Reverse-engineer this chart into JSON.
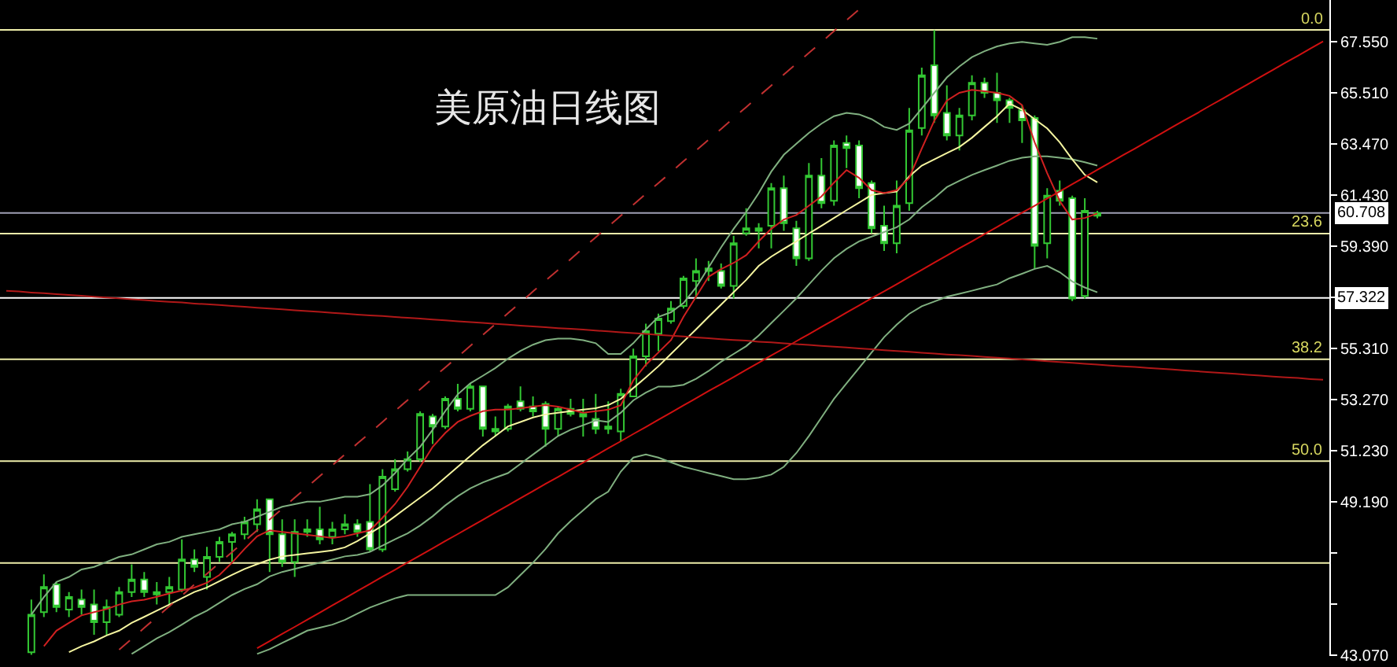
{
  "chart_data": {
    "type": "candlestick",
    "title": "美原油日线图",
    "color": "#33c833",
    "tick_labels": "y",
    "categories": [
      null,
      null,
      null,
      null,
      null,
      null,
      null,
      null,
      null,
      null,
      null,
      null,
      null,
      null,
      null,
      null,
      null,
      null,
      null,
      null,
      null,
      null,
      null,
      null,
      null,
      null,
      null,
      null,
      null,
      null,
      null,
      null,
      null,
      null,
      null,
      null,
      null,
      null,
      null,
      null,
      null,
      null,
      null,
      null,
      null,
      null,
      null,
      null,
      null,
      null,
      null,
      null,
      null,
      null,
      null,
      null,
      null,
      null,
      null,
      null,
      null,
      null,
      null,
      null,
      null,
      null,
      null,
      null,
      null,
      null,
      null,
      null,
      null,
      null,
      null,
      null,
      null,
      null,
      null,
      null,
      null,
      null,
      null,
      null,
      null,
      null,
      null,
      null,
      null,
      null,
      null,
      null,
      null,
      null,
      null,
      null,
      null,
      null,
      null,
      null,
      null,
      null,
      null,
      null,
      null,
      null
    ],
    "ohlc": [
      null,
      null,
      [
        43.2,
        45.3,
        43.1,
        44.7
      ],
      [
        44.8,
        46.3,
        44.6,
        45.8
      ],
      [
        45.9,
        46.0,
        44.8,
        45.0
      ],
      [
        44.9,
        45.6,
        44.6,
        45.4
      ],
      [
        45.3,
        45.7,
        44.7,
        45.0
      ],
      [
        45.1,
        45.7,
        43.9,
        44.4
      ],
      [
        44.4,
        45.3,
        43.9,
        45.0
      ],
      [
        44.7,
        45.8,
        44.6,
        45.6
      ],
      [
        45.6,
        46.7,
        45.4,
        46.1
      ],
      [
        46.1,
        46.4,
        45.4,
        45.6
      ],
      [
        45.5,
        46.0,
        45.1,
        45.6
      ],
      [
        45.6,
        46.2,
        45.0,
        45.8
      ],
      [
        45.7,
        47.7,
        45.6,
        46.9
      ],
      [
        46.9,
        47.3,
        46.4,
        46.6
      ],
      [
        46.2,
        47.4,
        45.7,
        47.0
      ],
      [
        47.0,
        47.8,
        46.8,
        47.6
      ],
      [
        47.6,
        48.0,
        46.8,
        47.9
      ],
      [
        47.9,
        48.6,
        47.7,
        48.4
      ],
      [
        48.3,
        49.3,
        48.0,
        48.9
      ],
      [
        49.3,
        49.3,
        46.4,
        47.9
      ],
      [
        47.9,
        48.5,
        46.6,
        46.8
      ],
      [
        46.8,
        48.5,
        46.2,
        48.0
      ],
      [
        48.0,
        48.5,
        47.8,
        48.1
      ],
      [
        48.1,
        49.0,
        47.5,
        47.7
      ],
      [
        47.8,
        48.4,
        47.5,
        48.1
      ],
      [
        48.1,
        48.7,
        47.9,
        48.3
      ],
      [
        48.3,
        48.5,
        47.8,
        48.0
      ],
      [
        48.4,
        49.9,
        47.2,
        47.3
      ],
      [
        47.3,
        50.5,
        47.2,
        50.2
      ],
      [
        49.7,
        50.9,
        49.6,
        50.5
      ],
      [
        50.5,
        51.2,
        50.4,
        50.9
      ],
      [
        50.9,
        52.8,
        50.8,
        52.7
      ],
      [
        52.6,
        52.7,
        51.5,
        52.2
      ],
      [
        52.2,
        53.4,
        52.1,
        53.3
      ],
      [
        53.3,
        53.9,
        52.8,
        52.9
      ],
      [
        52.9,
        53.9,
        52.8,
        53.8
      ],
      [
        53.8,
        53.8,
        51.8,
        52.1
      ],
      [
        52.0,
        52.6,
        51.8,
        52.1
      ],
      [
        52.1,
        53.1,
        52.0,
        53.0
      ],
      [
        53.2,
        53.8,
        52.8,
        52.9
      ],
      [
        53.0,
        53.4,
        52.6,
        52.8
      ],
      [
        53.1,
        53.2,
        51.4,
        52.1
      ],
      [
        52.1,
        53.0,
        51.8,
        52.9
      ],
      [
        52.9,
        53.3,
        52.6,
        52.7
      ],
      [
        52.6,
        53.3,
        51.8,
        52.7
      ],
      [
        52.5,
        53.5,
        51.9,
        52.1
      ],
      [
        52.1,
        53.2,
        51.9,
        52.2
      ],
      [
        52.0,
        53.7,
        51.6,
        53.5
      ],
      [
        53.4,
        55.3,
        53.4,
        55.0
      ],
      [
        55.0,
        56.3,
        54.6,
        56.0
      ],
      [
        55.9,
        56.7,
        55.2,
        56.5
      ],
      [
        56.4,
        57.2,
        56.3,
        56.9
      ],
      [
        57.0,
        58.2,
        56.9,
        58.1
      ],
      [
        58.0,
        58.9,
        57.3,
        58.4
      ],
      [
        58.4,
        58.8,
        58.0,
        58.5
      ],
      [
        58.4,
        58.7,
        57.7,
        57.8
      ],
      [
        57.8,
        59.8,
        57.3,
        59.5
      ],
      [
        59.9,
        60.9,
        59.8,
        60.1
      ],
      [
        60.0,
        60.3,
        59.3,
        60.1
      ],
      [
        60.2,
        61.9,
        59.3,
        61.7
      ],
      [
        61.7,
        62.2,
        60.0,
        60.3
      ],
      [
        60.1,
        60.4,
        58.6,
        58.9
      ],
      [
        58.9,
        62.7,
        58.8,
        62.2
      ],
      [
        62.2,
        62.9,
        60.9,
        61.1
      ],
      [
        61.2,
        63.6,
        61.0,
        63.4
      ],
      [
        63.5,
        63.8,
        62.5,
        63.3
      ],
      [
        63.4,
        63.6,
        61.3,
        61.7
      ],
      [
        61.9,
        62.0,
        59.9,
        60.1
      ],
      [
        60.2,
        61.0,
        59.2,
        59.5
      ],
      [
        59.5,
        62.0,
        59.1,
        61.0
      ],
      [
        61.1,
        64.9,
        60.8,
        64.0
      ],
      [
        64.1,
        66.5,
        63.8,
        66.2
      ],
      [
        66.6,
        68.0,
        64.3,
        64.6
      ],
      [
        64.7,
        65.8,
        63.6,
        63.8
      ],
      [
        63.8,
        64.9,
        63.2,
        64.6
      ],
      [
        64.6,
        66.2,
        64.4,
        65.9
      ],
      [
        65.9,
        66.1,
        65.3,
        65.5
      ],
      [
        65.5,
        66.3,
        64.3,
        65.2
      ],
      [
        65.2,
        65.3,
        64.3,
        64.9
      ],
      [
        64.8,
        65.0,
        63.5,
        64.4
      ],
      [
        64.5,
        64.6,
        58.5,
        59.4
      ],
      [
        59.5,
        61.7,
        58.9,
        61.4
      ],
      [
        61.6,
        62.0,
        61.0,
        61.2
      ],
      [
        61.3,
        61.4,
        57.2,
        57.3
      ],
      [
        57.4,
        61.3,
        57.3,
        60.8
      ],
      [
        60.6,
        60.8,
        60.5,
        60.7
      ],
      null,
      null,
      null,
      null,
      null,
      null,
      null,
      null,
      null,
      null,
      null,
      null,
      null,
      null,
      null,
      null,
      null,
      null
    ],
    "series": [
      {
        "type": "line",
        "color": "#80b080",
        "values": [
          null,
          null,
          44.7,
          45.4,
          46.0,
          46.2,
          46.5,
          46.6,
          46.8,
          47.0,
          47.1,
          47.3,
          47.5,
          47.6,
          47.8,
          47.9,
          48.0,
          48.1,
          48.3,
          48.4,
          48.6,
          48.8,
          49.0,
          49.1,
          49.2,
          49.2,
          49.3,
          49.4,
          49.4,
          49.5,
          49.85,
          50.34,
          50.9,
          51.39,
          52.07,
          52.81,
          53.48,
          53.92,
          54.22,
          54.53,
          54.9,
          55.21,
          55.46,
          55.64,
          55.7,
          55.7,
          55.64,
          55.52,
          55.09,
          55.09,
          55.52,
          56.07,
          56.57,
          56.75,
          57.12,
          57.74,
          58.54,
          59.34,
          60.08,
          60.75,
          61.5,
          62.36,
          63.03,
          63.47,
          63.9,
          64.27,
          64.57,
          64.7,
          64.64,
          64.45,
          64.14,
          64.02,
          64.27,
          64.88,
          65.5,
          66.11,
          66.55,
          66.92,
          67.16,
          67.35,
          67.47,
          67.53,
          67.47,
          67.41,
          67.53,
          67.72,
          67.72,
          67.66,
          null,
          null,
          null,
          null,
          null,
          null,
          null,
          null,
          null,
          null,
          null,
          null,
          null,
          null,
          null,
          null,
          null,
          null
        ]
      },
      {
        "type": "line",
        "color": "#80b080",
        "values": [
          null,
          null,
          null,
          null,
          null,
          null,
          null,
          null,
          null,
          null,
          43.13,
          43.44,
          43.75,
          44.0,
          44.3,
          44.61,
          44.86,
          45.17,
          45.48,
          45.72,
          45.91,
          46.22,
          46.4,
          46.52,
          46.65,
          46.77,
          46.89,
          47.02,
          47.08,
          47.2,
          47.45,
          47.7,
          47.94,
          48.25,
          48.62,
          49.05,
          49.42,
          49.73,
          49.97,
          50.16,
          50.34,
          50.71,
          51.08,
          51.45,
          51.82,
          52.07,
          52.25,
          52.44,
          52.38,
          52.75,
          53.24,
          53.55,
          53.79,
          53.79,
          53.86,
          54.1,
          54.41,
          54.78,
          55.09,
          55.4,
          55.83,
          56.32,
          56.81,
          57.31,
          57.86,
          58.41,
          58.91,
          59.28,
          59.58,
          59.77,
          59.95,
          60.14,
          60.45,
          60.94,
          61.31,
          61.74,
          61.99,
          62.23,
          62.42,
          62.6,
          62.79,
          62.91,
          62.97,
          62.97,
          62.91,
          62.85,
          62.73,
          62.6,
          null,
          null,
          null,
          null,
          null,
          null,
          null,
          null,
          null,
          null,
          null,
          null,
          null,
          null,
          null,
          null,
          null,
          null
        ]
      },
      {
        "type": "line",
        "color": "#80b080",
        "values": [
          null,
          null,
          null,
          null,
          null,
          null,
          null,
          null,
          null,
          null,
          null,
          null,
          null,
          null,
          null,
          null,
          null,
          null,
          null,
          null,
          43.13,
          43.32,
          43.57,
          43.81,
          44.06,
          44.18,
          44.3,
          44.49,
          44.74,
          44.98,
          45.17,
          45.35,
          45.48,
          45.48,
          45.48,
          45.48,
          45.48,
          45.48,
          45.48,
          45.48,
          45.79,
          46.28,
          46.77,
          47.32,
          47.94,
          48.43,
          48.86,
          49.3,
          49.6,
          50.4,
          50.96,
          51.08,
          50.96,
          50.77,
          50.59,
          50.47,
          50.34,
          50.22,
          50.1,
          50.1,
          50.16,
          50.28,
          50.59,
          51.14,
          51.82,
          52.56,
          53.3,
          53.92,
          54.53,
          55.15,
          55.76,
          56.26,
          56.69,
          56.99,
          57.18,
          57.37,
          57.49,
          57.61,
          57.74,
          57.86,
          58.11,
          58.29,
          58.48,
          58.6,
          58.35,
          57.98,
          57.74,
          57.55,
          null,
          null,
          null,
          null,
          null,
          null,
          null,
          null,
          null,
          null,
          null,
          null,
          null,
          null,
          null,
          null,
          null,
          null
        ]
      },
      {
        "type": "line",
        "color": "#f5f5a0",
        "values": [
          null,
          null,
          null,
          null,
          null,
          43.2,
          43.44,
          43.63,
          43.87,
          44.06,
          44.37,
          44.61,
          44.86,
          45.1,
          45.35,
          45.6,
          45.78,
          46.03,
          46.28,
          46.52,
          46.71,
          46.89,
          47.02,
          47.08,
          47.14,
          47.2,
          47.26,
          47.38,
          47.63,
          47.94,
          48.25,
          48.62,
          48.99,
          49.36,
          49.73,
          50.16,
          50.59,
          51.02,
          51.45,
          51.82,
          52.2,
          52.38,
          52.56,
          52.68,
          52.75,
          52.81,
          52.87,
          52.93,
          53.05,
          53.3,
          53.73,
          54.16,
          54.6,
          55.09,
          55.58,
          56.07,
          56.57,
          57.06,
          57.55,
          58.04,
          58.6,
          58.97,
          59.28,
          59.58,
          59.89,
          60.2,
          60.51,
          60.82,
          61.12,
          61.43,
          61.5,
          61.56,
          62.17,
          62.6,
          62.85,
          63.1,
          63.34,
          63.71,
          64.14,
          64.57,
          65.07,
          64.82,
          64.45,
          64.08,
          63.53,
          62.85,
          62.23,
          61.93,
          null,
          null,
          null,
          null,
          null,
          null,
          null,
          null,
          null,
          null,
          null,
          null,
          null,
          null,
          null,
          null,
          null,
          null
        ]
      },
      {
        "type": "line",
        "color": "#d02020",
        "values": [
          null,
          null,
          null,
          43.44,
          44.06,
          44.37,
          44.67,
          44.8,
          44.92,
          45.1,
          45.23,
          45.29,
          45.41,
          45.54,
          45.66,
          45.78,
          45.97,
          46.28,
          46.77,
          47.32,
          47.82,
          48.06,
          48.0,
          47.94,
          47.88,
          47.82,
          47.75,
          47.82,
          47.94,
          48.06,
          48.56,
          49.11,
          49.79,
          50.59,
          51.39,
          51.94,
          52.38,
          52.62,
          52.81,
          52.87,
          52.87,
          52.93,
          52.99,
          53.05,
          52.99,
          52.87,
          52.75,
          52.81,
          52.87,
          53.05,
          54.04,
          54.66,
          55.15,
          55.64,
          56.57,
          57.37,
          58.17,
          58.47,
          58.72,
          59.03,
          59.58,
          60.08,
          60.45,
          60.63,
          61.0,
          61.37,
          61.92,
          62.42,
          62.11,
          61.62,
          61.5,
          61.62,
          62.11,
          63.28,
          64.39,
          65.19,
          65.5,
          65.62,
          65.56,
          65.5,
          65.38,
          65.01,
          63.53,
          62.3,
          61.19,
          60.45,
          60.51,
          60.69,
          null,
          null,
          null,
          null,
          null,
          null,
          null,
          null,
          null,
          null,
          null,
          null,
          null,
          null,
          null,
          null,
          null,
          null
        ]
      },
      {
        "type": "line",
        "color": "#c03030",
        "line_style": "dashed",
        "values": [
          null,
          null,
          null,
          null,
          null,
          null,
          null,
          null,
          null,
          43.3,
          43.73,
          44.17,
          44.6,
          45.03,
          45.46,
          45.9,
          46.33,
          46.76,
          47.19,
          47.63,
          48.06,
          48.49,
          48.92,
          49.36,
          49.79,
          50.22,
          50.65,
          51.09,
          51.52,
          51.95,
          52.38,
          52.82,
          53.25,
          53.68,
          54.12,
          54.55,
          54.98,
          55.41,
          55.85,
          56.28,
          56.71,
          57.14,
          57.58,
          58.01,
          58.44,
          58.87,
          59.31,
          59.74,
          60.17,
          60.6,
          61.04,
          61.47,
          61.9,
          62.33,
          62.77,
          63.2,
          63.63,
          64.06,
          64.5,
          64.93,
          65.36,
          65.79,
          66.23,
          66.66,
          67.09,
          67.52,
          67.96,
          68.39,
          68.82,
          null,
          null,
          null,
          null,
          null,
          null,
          null,
          null,
          null,
          null,
          null,
          null,
          null,
          null,
          null,
          null,
          null,
          null,
          null,
          null,
          null,
          null,
          null,
          null,
          null,
          null,
          null,
          null,
          null,
          null,
          null,
          null,
          null,
          null,
          null,
          null,
          null
        ]
      },
      {
        "type": "line",
        "color": "#d01010",
        "values": [
          null,
          null,
          null,
          null,
          null,
          null,
          null,
          null,
          null,
          null,
          null,
          null,
          null,
          null,
          null,
          null,
          null,
          null,
          null,
          null,
          43.36,
          43.64,
          43.93,
          44.21,
          44.5,
          44.78,
          45.07,
          45.35,
          45.64,
          45.92,
          46.21,
          46.49,
          46.78,
          47.06,
          47.34,
          47.63,
          47.91,
          48.2,
          48.48,
          48.77,
          49.05,
          49.34,
          49.62,
          49.91,
          50.19,
          50.48,
          50.76,
          51.04,
          51.33,
          51.61,
          51.9,
          52.18,
          52.47,
          52.75,
          53.04,
          53.32,
          53.61,
          53.89,
          54.17,
          54.46,
          54.74,
          55.03,
          55.31,
          55.6,
          55.88,
          56.17,
          56.45,
          56.74,
          57.02,
          57.31,
          57.59,
          57.87,
          58.16,
          58.44,
          58.73,
          59.01,
          59.3,
          59.58,
          59.87,
          60.15,
          60.44,
          60.72,
          61.0,
          61.29,
          61.57,
          61.86,
          62.14,
          62.43,
          62.71,
          63.0,
          63.28,
          63.57,
          63.85,
          64.14,
          64.42,
          64.7,
          64.99,
          65.27,
          65.56,
          65.84,
          66.13,
          66.41,
          66.7,
          66.98,
          67.27,
          67.55
        ]
      },
      {
        "type": "line",
        "color": "#b01818",
        "values": [
          57.61,
          57.58,
          57.54,
          57.51,
          57.47,
          57.44,
          57.41,
          57.37,
          57.34,
          57.31,
          57.27,
          57.24,
          57.2,
          57.17,
          57.14,
          57.1,
          57.07,
          57.04,
          57.0,
          56.97,
          56.93,
          56.9,
          56.87,
          56.83,
          56.8,
          56.77,
          56.73,
          56.7,
          56.66,
          56.63,
          56.6,
          56.56,
          56.53,
          56.5,
          56.46,
          56.43,
          56.39,
          56.36,
          56.33,
          56.29,
          56.26,
          56.22,
          56.19,
          56.16,
          56.12,
          56.09,
          56.06,
          56.02,
          55.99,
          55.95,
          55.92,
          55.89,
          55.85,
          55.82,
          55.79,
          55.75,
          55.72,
          55.68,
          55.65,
          55.62,
          55.58,
          55.55,
          55.51,
          55.48,
          55.45,
          55.41,
          55.38,
          55.35,
          55.31,
          55.28,
          55.24,
          55.21,
          55.18,
          55.14,
          55.11,
          55.07,
          55.04,
          55.01,
          54.97,
          54.94,
          54.91,
          54.87,
          54.84,
          54.8,
          54.77,
          54.74,
          54.7,
          54.67,
          54.63,
          54.6,
          54.57,
          54.53,
          54.5,
          54.47,
          54.43,
          54.4,
          54.36,
          54.33,
          54.3,
          54.26,
          54.23,
          54.19,
          54.16,
          54.13,
          54.09,
          54.06
        ]
      }
    ],
    "ylim": [
      43.05,
      69.2
    ],
    "yticks": [
      {
        "value": 67.55,
        "label": "67.550"
      },
      {
        "value": 65.51,
        "label": "65.510"
      },
      {
        "value": 63.47,
        "label": "63.470"
      },
      {
        "value": 61.43,
        "label": "61.430"
      },
      {
        "value": 59.39,
        "label": "59.390"
      },
      {
        "value": 57.35,
        "label": null
      },
      {
        "value": 55.31,
        "label": "55.310"
      },
      {
        "value": 53.27,
        "label": "53.270"
      },
      {
        "value": 51.23,
        "label": "51.230"
      },
      {
        "value": 49.19,
        "label": "49.190"
      },
      {
        "value": 47.15,
        "label": null
      },
      {
        "value": 45.11,
        "label": null
      },
      {
        "value": 43.07,
        "label": "43.070"
      }
    ],
    "ref_lines": [
      {
        "axis": "y",
        "value": 68.01,
        "color": "#eeeeaa"
      },
      {
        "axis": "y",
        "value": 59.89,
        "color": "#eeeeaa"
      },
      {
        "axis": "y",
        "value": 54.88,
        "color": "#eeeeaa"
      },
      {
        "axis": "y",
        "value": 50.82,
        "color": "#eeeeaa"
      },
      {
        "axis": "y",
        "value": 46.76,
        "color": "#eeeeaa"
      },
      {
        "axis": "y",
        "value": 60.708,
        "label": "60.708",
        "color": "#a0a0b4"
      },
      {
        "axis": "y",
        "value": 57.322,
        "label": "57.322",
        "color": "#ffffff"
      }
    ],
    "annotations": [
      {
        "text": "0.0",
        "y": 68.01
      },
      {
        "text": "23.6",
        "y": 59.89
      },
      {
        "text": "38.2",
        "y": 54.88
      },
      {
        "text": "50.0",
        "y": 50.82
      }
    ]
  }
}
